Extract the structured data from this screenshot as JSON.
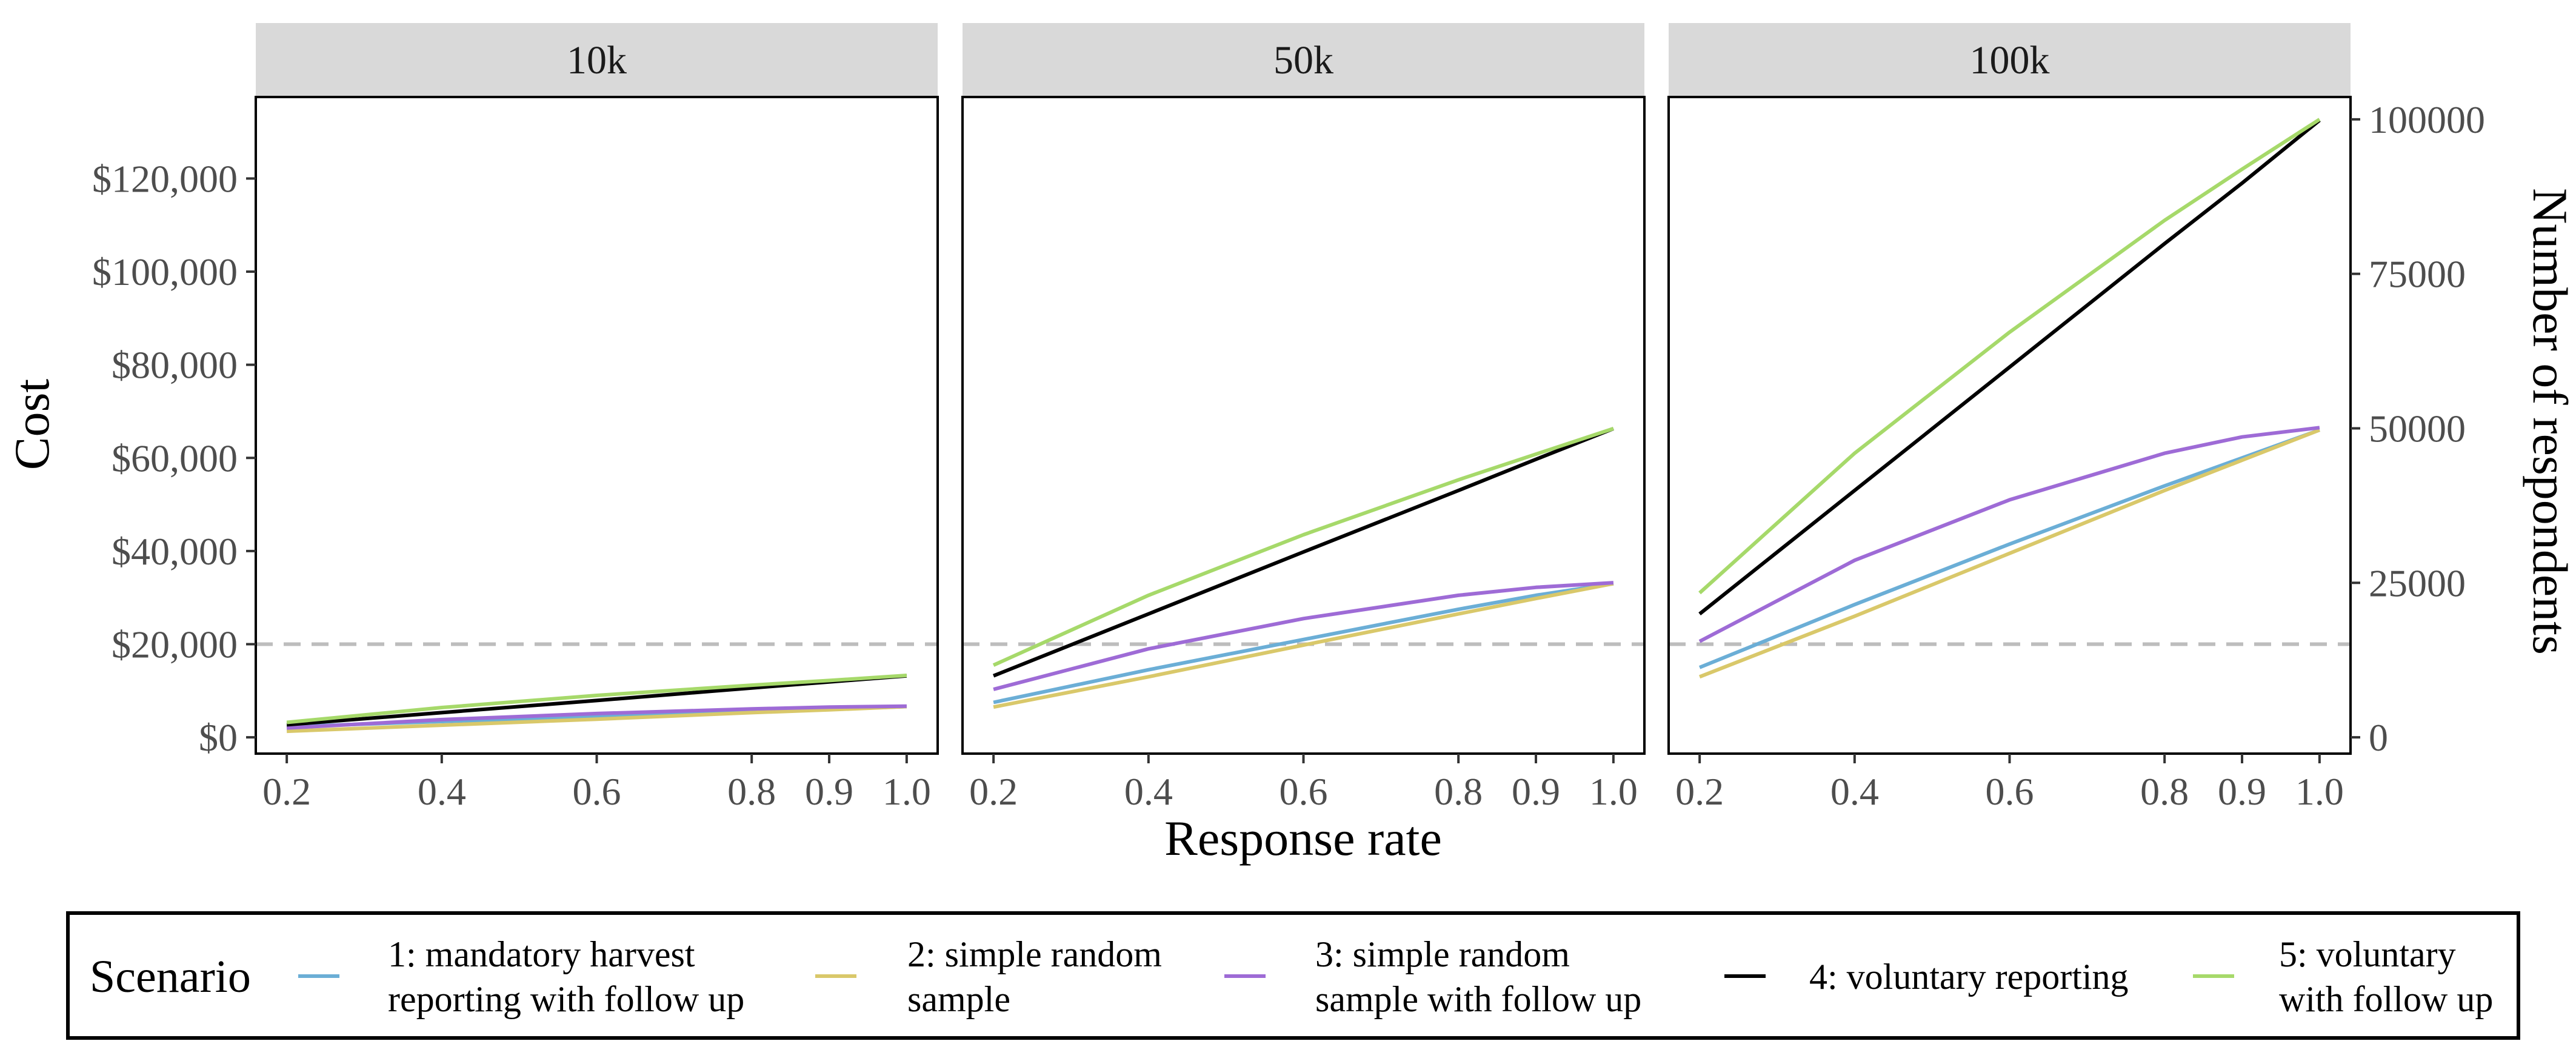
{
  "chart_data": {
    "type": "line",
    "xlabel": "Response rate",
    "ylabel_left": "Cost",
    "ylabel_right": "Number of respondents",
    "panels": [
      "10k",
      "50k",
      "100k"
    ],
    "x": [
      0.2,
      0.4,
      0.6,
      0.8,
      0.9,
      1.0
    ],
    "x_ticks": [
      "0.2",
      "0.4",
      "0.6",
      "0.8",
      "0.9",
      "1.0"
    ],
    "xlim": [
      0.16,
      1.04
    ],
    "ylim_cost": [
      -3500,
      137500
    ],
    "y_ticks_cost": [
      0,
      20000,
      40000,
      60000,
      80000,
      100000,
      120000
    ],
    "y_tick_labels_cost": [
      "$0",
      "$20,000",
      "$40,000",
      "$60,000",
      "$80,000",
      "$100,000",
      "$120,000"
    ],
    "y_ticks_respondents": [
      0,
      25000,
      50000,
      75000,
      100000
    ],
    "y_tick_labels_respondents": [
      "0",
      "25000",
      "50000",
      "75000",
      "100000"
    ],
    "reference_line": 20000,
    "legend_title": "Scenario",
    "legend_position": "bottom",
    "grid": false,
    "series": [
      {
        "name": "1: mandatory harvest reporting with follow up",
        "color": "#6BAED6",
        "values": {
          "10k": [
            2300,
            3400,
            4400,
            5500,
            6000,
            6600
          ],
          "50k": [
            7500,
            14500,
            21000,
            27500,
            30500,
            33000
          ],
          "100k": [
            15000,
            28500,
            41500,
            54000,
            60000,
            66000
          ]
        }
      },
      {
        "name": "2: simple random sample",
        "color": "#D9C86A",
        "values": {
          "10k": [
            1300,
            2600,
            3900,
            5300,
            5900,
            6600
          ],
          "50k": [
            6500,
            13000,
            19800,
            26500,
            29800,
            33000
          ],
          "100k": [
            13000,
            26000,
            39500,
            53000,
            59500,
            66000
          ]
        }
      },
      {
        "name": "3: simple random sample with follow up",
        "color": "#9E6BD6",
        "values": {
          "10k": [
            2000,
            3800,
            5100,
            6100,
            6500,
            6700
          ],
          "50k": [
            10300,
            19000,
            25500,
            30500,
            32200,
            33200
          ],
          "100k": [
            20600,
            38000,
            51000,
            61000,
            64500,
            66500
          ]
        }
      },
      {
        "name": "4: voluntary reporting",
        "color": "#000000",
        "values": {
          "10k": [
            2700,
            5300,
            7900,
            10600,
            11900,
            13200
          ],
          "50k": [
            13200,
            26500,
            39800,
            53000,
            59700,
            66300
          ],
          "100k": [
            26500,
            53000,
            79500,
            106000,
            119000,
            132500
          ]
        }
      },
      {
        "name": "5: voluntary with follow up",
        "color": "#A6D96A",
        "values": {
          "10k": [
            3200,
            6400,
            9000,
            11200,
            12200,
            13300
          ],
          "50k": [
            15500,
            30500,
            43500,
            55300,
            60800,
            66300
          ],
          "100k": [
            31000,
            61000,
            87000,
            111000,
            122000,
            132700
          ]
        }
      }
    ]
  },
  "legend": {
    "title": "Scenario",
    "items": [
      {
        "line1": "1: mandatory harvest",
        "line2": "reporting with follow up"
      },
      {
        "line1": "2: simple random",
        "line2": "sample"
      },
      {
        "line1": "3: simple random",
        "line2": "sample with follow up"
      },
      {
        "line1": "4: voluntary reporting",
        "line2": ""
      },
      {
        "line1": "5: voluntary",
        "line2": "with follow up"
      }
    ]
  }
}
